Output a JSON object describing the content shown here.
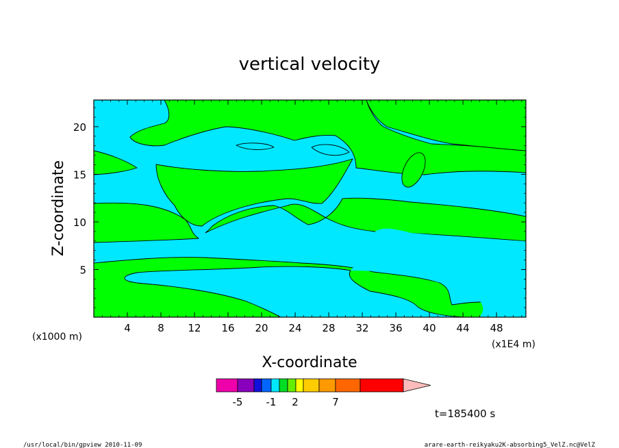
{
  "chart_data": {
    "type": "heatmap",
    "title": "vertical velocity",
    "xlabel": "X-coordinate",
    "ylabel": "Z-coordinate",
    "x_ticks": [
      "4",
      "8",
      "12",
      "16",
      "20",
      "24",
      "28",
      "32",
      "36",
      "40",
      "44",
      "48"
    ],
    "y_ticks": [
      "5",
      "10",
      "15",
      "20"
    ],
    "x_unit_left": "(x1000 m)",
    "x_unit_right": "(x1E4 m)",
    "xlim": [
      0,
      51.5
    ],
    "ylim": [
      0,
      22.8
    ],
    "field_colors": {
      "positive": "#00ff00",
      "negative": "#00e8ff",
      "contour": "#000000"
    },
    "colorbar": {
      "tick_labels": [
        "-5",
        "-1",
        "2",
        "7"
      ],
      "colors": [
        "#ee00aa",
        "#8800bb",
        "#1111dd",
        "#0066ff",
        "#00e8ff",
        "#00dd22",
        "#66ee00",
        "#ffff00",
        "#ffcc00",
        "#ff9900",
        "#ff6600",
        "#ff0000",
        "#ff7777",
        "#ffbbbb"
      ]
    },
    "time_label": "t=185400 s",
    "footer_left": "/usr/local/bin/gpview  2010-11-09",
    "footer_right": "arare-earth-reikyaku2K-absorbing5_VelZ.nc@VelZ"
  }
}
